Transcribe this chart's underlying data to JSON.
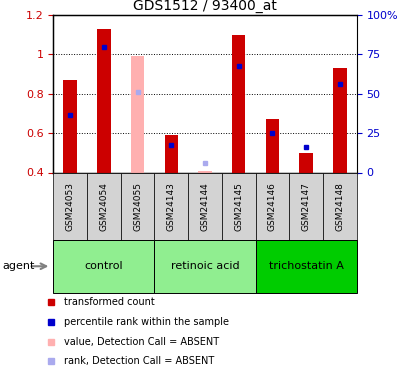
{
  "title": "GDS1512 / 93400_at",
  "samples": [
    "GSM24053",
    "GSM24054",
    "GSM24055",
    "GSM24143",
    "GSM24144",
    "GSM24145",
    "GSM24146",
    "GSM24147",
    "GSM24148"
  ],
  "transformed_count": [
    0.87,
    1.13,
    null,
    0.59,
    null,
    1.1,
    0.67,
    0.5,
    0.93
  ],
  "percentile_rank": [
    0.69,
    1.04,
    null,
    0.54,
    null,
    0.94,
    0.6,
    0.53,
    0.85
  ],
  "absent_value": [
    null,
    null,
    0.99,
    null,
    0.41,
    null,
    null,
    null,
    null
  ],
  "absent_rank": [
    null,
    null,
    0.81,
    null,
    0.45,
    null,
    null,
    null,
    null
  ],
  "group_boundaries": [
    [
      0,
      3,
      "control"
    ],
    [
      3,
      6,
      "retinoic acid"
    ],
    [
      6,
      9,
      "trichostatin A"
    ]
  ],
  "group_colors": [
    "#90EE90",
    "#90EE90",
    "#00DD00"
  ],
  "ylim_left": [
    0.4,
    1.2
  ],
  "ylim_right": [
    0,
    100
  ],
  "bar_width": 0.4,
  "red_color": "#CC0000",
  "pink_color": "#FFB0B0",
  "blue_color": "#0000CC",
  "light_blue_color": "#AAAAEE",
  "background_color": "#FFFFFF",
  "tick_label_color_left": "#CC0000",
  "tick_label_color_right": "#0000CC",
  "sample_box_color": "#D3D3D3",
  "legend_items": [
    [
      "#CC0000",
      "transformed count"
    ],
    [
      "#0000CC",
      "percentile rank within the sample"
    ],
    [
      "#FFB0B0",
      "value, Detection Call = ABSENT"
    ],
    [
      "#AAAAEE",
      "rank, Detection Call = ABSENT"
    ]
  ]
}
